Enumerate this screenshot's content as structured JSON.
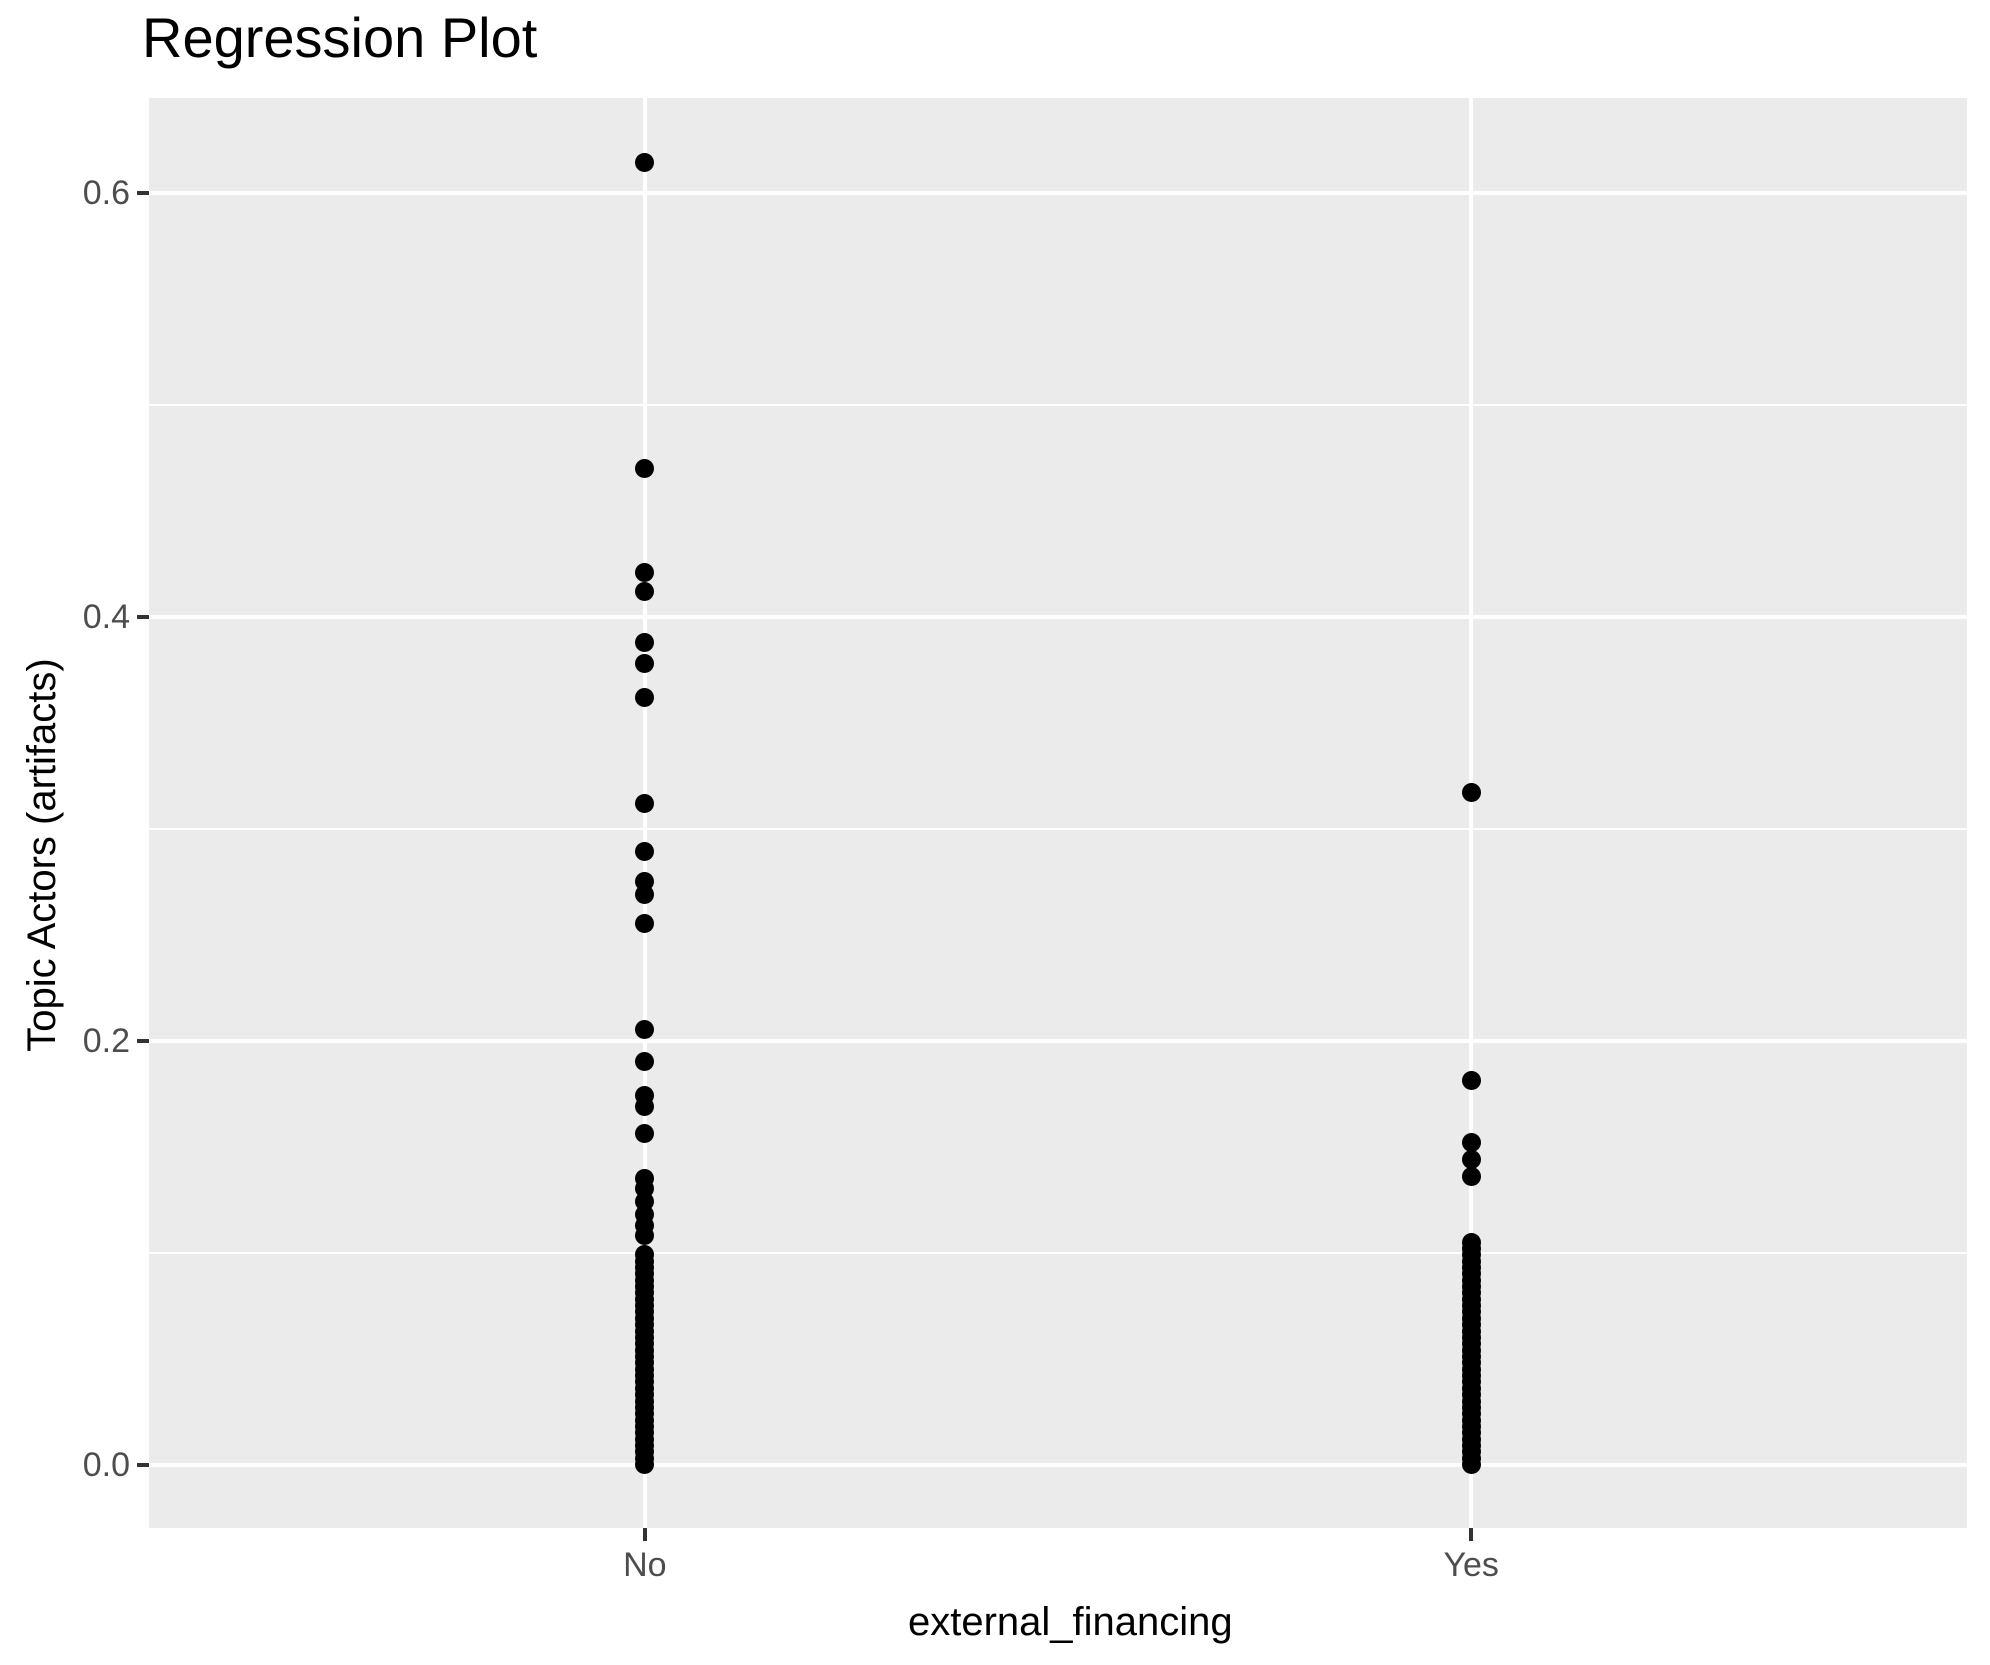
{
  "title": "Regression Plot",
  "colors": {
    "panel_background": "#EBEBEB",
    "gridline": "#FFFFFF",
    "point": "#000000",
    "tick_label": "#4D4D4D",
    "tick_mark": "#333333",
    "axis_title": "#000000",
    "plot_background": "#FFFFFF"
  },
  "chart_data": {
    "type": "scatter",
    "title": "Regression Plot",
    "xlabel": "external_financing",
    "ylabel": "Topic Actors (artifacts)",
    "categories": [
      "No",
      "Yes"
    ],
    "ylim": [
      -0.0299,
      0.6446
    ],
    "y_major_ticks": [
      0.0,
      0.2,
      0.4,
      0.6
    ],
    "y_tick_labels": [
      "0.0",
      "0.2",
      "0.4",
      "0.6"
    ],
    "y_minor_ticks": [
      0.1,
      0.3,
      0.5
    ],
    "grid": "major-and-minor, white on gray panel",
    "legend_position": "none",
    "series": [
      {
        "name": "No",
        "values": [
          0.614,
          0.47,
          0.421,
          0.412,
          0.388,
          0.378,
          0.362,
          0.312,
          0.289,
          0.275,
          0.269,
          0.255,
          0.205,
          0.19,
          0.174,
          0.169,
          0.156,
          0.135,
          0.13,
          0.124,
          0.118,
          0.113,
          0.108,
          0.099,
          0.096,
          0.093,
          0.09,
          0.087,
          0.084,
          0.081,
          0.078,
          0.075,
          0.072,
          0.069,
          0.066,
          0.063,
          0.06,
          0.057,
          0.054,
          0.051,
          0.048,
          0.045,
          0.042,
          0.039,
          0.036,
          0.033,
          0.03,
          0.027,
          0.024,
          0.021,
          0.018,
          0.015,
          0.012,
          0.009,
          0.006,
          0.003,
          0.0
        ]
      },
      {
        "name": "Yes",
        "values": [
          0.317,
          0.181,
          0.152,
          0.144,
          0.136,
          0.105,
          0.102,
          0.099,
          0.096,
          0.093,
          0.09,
          0.087,
          0.084,
          0.081,
          0.078,
          0.075,
          0.072,
          0.069,
          0.066,
          0.063,
          0.06,
          0.057,
          0.054,
          0.051,
          0.048,
          0.045,
          0.042,
          0.039,
          0.036,
          0.033,
          0.03,
          0.027,
          0.024,
          0.021,
          0.018,
          0.015,
          0.012,
          0.009,
          0.006,
          0.003,
          0.0
        ]
      }
    ]
  }
}
